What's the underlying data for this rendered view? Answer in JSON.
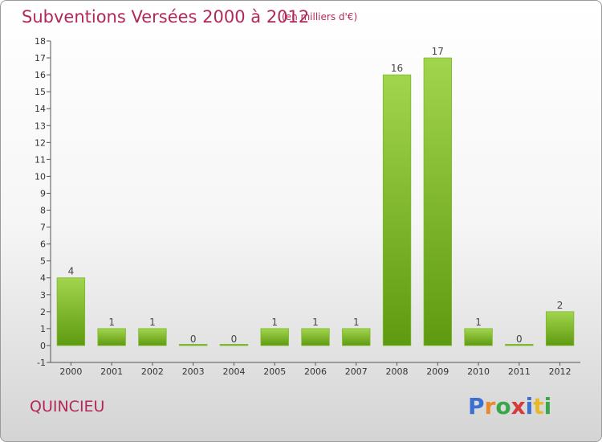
{
  "title": "Subventions Versées 2000 à 2012",
  "subtitle": "(en milliers d'€)",
  "commune": "QUINCIEU",
  "logo": {
    "text": "Proxiti",
    "letters": [
      {
        "ch": "P",
        "color": "#3d6fd1"
      },
      {
        "ch": "r",
        "color": "#e8892b"
      },
      {
        "ch": "o",
        "color": "#3aa64a"
      },
      {
        "ch": "x",
        "color": "#d63a3a"
      },
      {
        "ch": "i",
        "color": "#3d6fd1"
      },
      {
        "ch": "t",
        "color": "#e8b82b"
      },
      {
        "ch": "i",
        "color": "#3aa64a"
      }
    ]
  },
  "colors": {
    "title": "#b2285a",
    "bar_light": "#9ed14a",
    "bar_dark": "#5e9a10",
    "axis": "#555555"
  },
  "chart_data": {
    "type": "bar",
    "title": "Subventions Versées 2000 à 2012",
    "subtitle": "(en milliers d'€)",
    "categories": [
      "2000",
      "2001",
      "2002",
      "2003",
      "2004",
      "2005",
      "2006",
      "2007",
      "2008",
      "2009",
      "2010",
      "2011",
      "2012"
    ],
    "values": [
      4,
      1,
      1,
      0,
      0,
      1,
      1,
      1,
      16,
      17,
      1,
      0,
      2
    ],
    "value_labels": [
      "4",
      "1",
      "1",
      "0",
      "0",
      "1",
      "1",
      "1",
      "16",
      "17",
      "1",
      "0",
      "2"
    ],
    "ylim": [
      -1,
      18
    ],
    "yticks": [
      "-1",
      "0",
      "1",
      "2",
      "3",
      "4",
      "5",
      "6",
      "7",
      "8",
      "9",
      "10",
      "11",
      "12",
      "13",
      "14",
      "15",
      "16",
      "17",
      "18"
    ],
    "grid": false,
    "legend": "none"
  }
}
